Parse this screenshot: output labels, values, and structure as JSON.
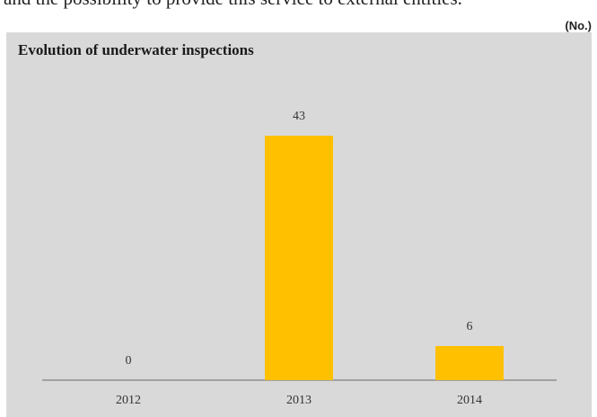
{
  "intro": {
    "text": "and the possibility to provide this service to external entities."
  },
  "unit_label": "(No.)",
  "chart_data": {
    "type": "bar",
    "title": "Evolution of underwater inspections",
    "categories": [
      "2012",
      "2013",
      "2014"
    ],
    "values": [
      0,
      43,
      6
    ],
    "data_labels": [
      "0",
      "43",
      "6"
    ],
    "xlabel": "",
    "ylabel": "",
    "ylim": [
      0,
      50
    ],
    "grid": false,
    "legend": "none",
    "bar_color": "#ffc000",
    "background_color": "#d9d9d9",
    "axis_color": "#808080"
  }
}
